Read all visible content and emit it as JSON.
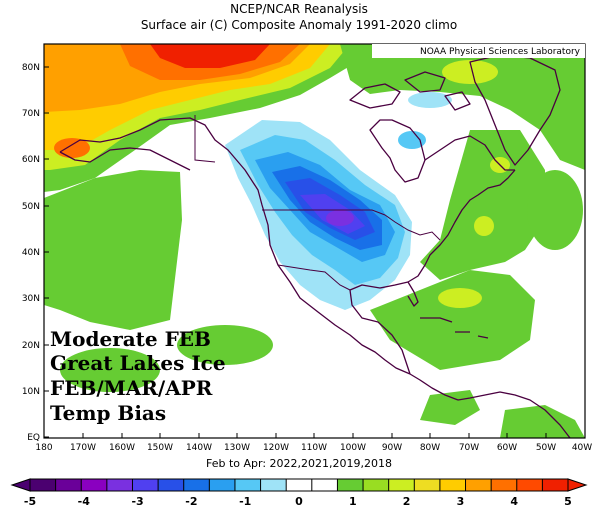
{
  "header": {
    "title_line1": "NCEP/NCAR Reanalysis",
    "title_line2": "Surface air (C) Composite Anomaly 1991-2020 climo"
  },
  "map": {
    "credit": "NOAA Physical Sciences Laboratory",
    "annotation": [
      "Moderate FEB",
      "Great Lakes Ice",
      "FEB/MAR/APR",
      "Temp Bias"
    ],
    "lat_labels": [
      "80N",
      "70N",
      "60N",
      "50N",
      "40N",
      "30N",
      "20N",
      "10N",
      "EQ"
    ],
    "lon_labels": [
      "180",
      "170W",
      "160W",
      "150W",
      "140W",
      "130W",
      "120W",
      "110W",
      "100W",
      "90W",
      "80W",
      "70W",
      "60W",
      "50W",
      "40W"
    ],
    "date_range": "Feb to Apr: 2022,2021,2019,2018"
  },
  "colorbar": {
    "labels": [
      "-5",
      "-4",
      "-3",
      "-2",
      "-1",
      "0",
      "1",
      "2",
      "3",
      "4",
      "5"
    ],
    "colors": [
      "#4b0070",
      "#6a0099",
      "#8a00c0",
      "#7a30e0",
      "#5040f0",
      "#2850e8",
      "#1870e8",
      "#2a9ff0",
      "#56c8f5",
      "#9fe3f7",
      "#ffffff",
      "#ffffff",
      "#66cc33",
      "#99dd22",
      "#ccee22",
      "#eedd22",
      "#ffcc00",
      "#ffa000",
      "#ff7000",
      "#ff4a00",
      "#f02000"
    ]
  }
}
